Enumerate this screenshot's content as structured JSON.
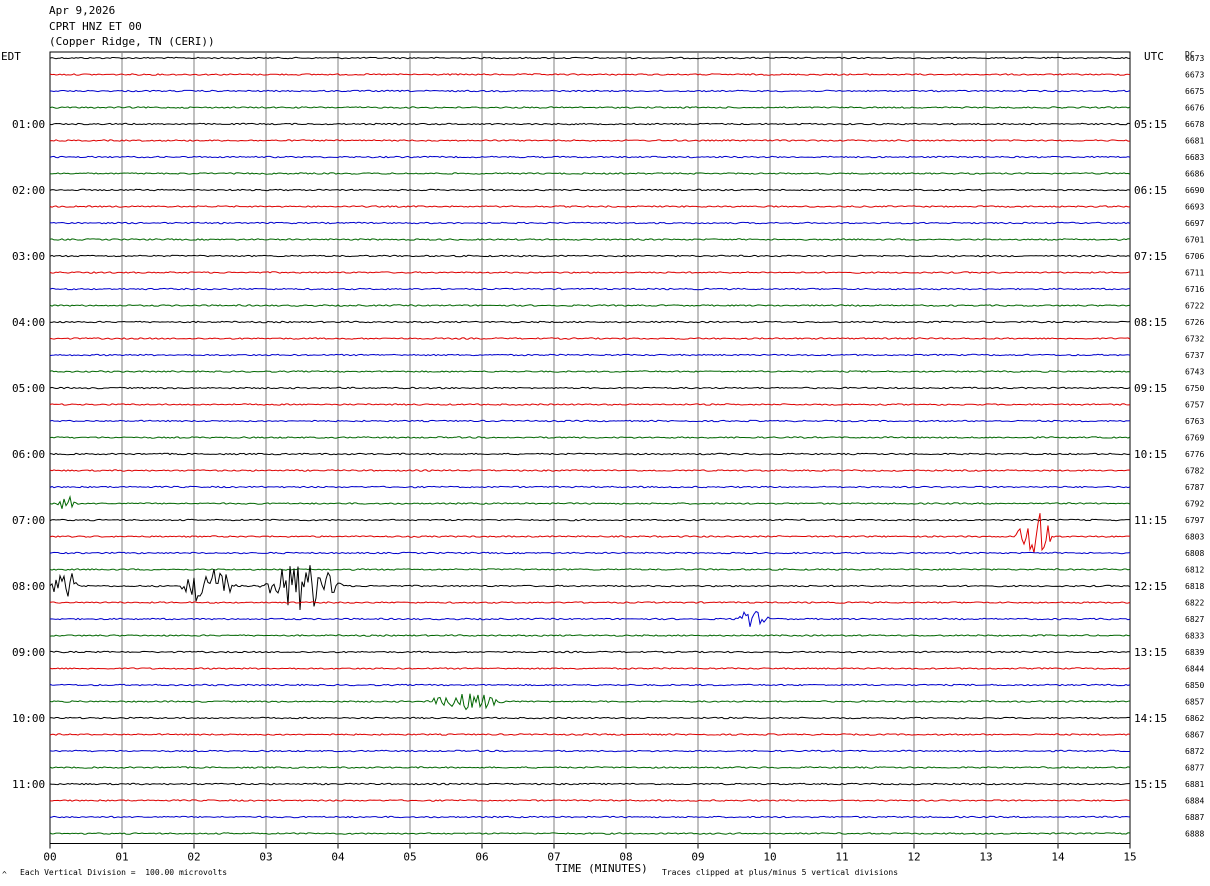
{
  "header": {
    "date": "Apr 9,2026",
    "station": "CPRT HNZ ET 00",
    "location": "(Copper Ridge, TN (CERI))"
  },
  "left_timezone": "EDT",
  "right_timezone": "UTC",
  "dc_label": "DC",
  "footer": {
    "scale_note": "Each Vertical Division =  100.00 microvolts",
    "clip_note": "Traces clipped at plus/minus 5 vertical divisions",
    "corner_mark": "^"
  },
  "colors": {
    "trace_cycle": [
      "#000000",
      "#dd0000",
      "#0000cc",
      "#006600"
    ],
    "grid": "#808080"
  },
  "chart_data": {
    "type": "line",
    "title": "",
    "xlabel": "TIME (MINUTES)",
    "ylabel": "",
    "xlim": [
      0,
      15
    ],
    "x_ticks": [
      "00",
      "01",
      "02",
      "03",
      "04",
      "05",
      "06",
      "07",
      "08",
      "09",
      "10",
      "11",
      "12",
      "13",
      "14",
      "15"
    ],
    "trace_count": 48,
    "trace_interval_minutes": 15,
    "left_hour_labels": [
      "01:00",
      "02:00",
      "03:00",
      "04:00",
      "05:00",
      "06:00",
      "07:00",
      "08:00",
      "09:00",
      "10:00",
      "11:00"
    ],
    "right_hour_labels": [
      "05:15",
      "06:15",
      "07:15",
      "08:15",
      "09:15",
      "10:15",
      "11:15",
      "12:15",
      "13:15",
      "14:15",
      "15:15"
    ],
    "dc_offsets": [
      6673,
      6673,
      6675,
      6676,
      6678,
      6681,
      6683,
      6686,
      6690,
      6693,
      6697,
      6701,
      6706,
      6711,
      6716,
      6722,
      6726,
      6732,
      6737,
      6743,
      6750,
      6757,
      6763,
      6769,
      6776,
      6782,
      6787,
      6792,
      6797,
      6803,
      6808,
      6812,
      6818,
      6822,
      6827,
      6833,
      6839,
      6844,
      6850,
      6857,
      6862,
      6867,
      6872,
      6877,
      6881,
      6884,
      6887,
      6888
    ],
    "events": [
      {
        "trace": 27,
        "start_min": 0.1,
        "end_min": 0.35,
        "peak_div": 1.0
      },
      {
        "trace": 29,
        "start_min": 13.4,
        "end_min": 13.95,
        "peak_div": 2.4
      },
      {
        "trace": 32,
        "start_min": 0.0,
        "end_min": 0.4,
        "peak_div": 1.6
      },
      {
        "trace": 32,
        "start_min": 1.8,
        "end_min": 2.6,
        "peak_div": 1.7
      },
      {
        "trace": 32,
        "start_min": 2.9,
        "end_min": 4.1,
        "peak_div": 2.0
      },
      {
        "trace": 34,
        "start_min": 9.5,
        "end_min": 10.0,
        "peak_div": 0.7
      },
      {
        "trace": 39,
        "start_min": 5.2,
        "end_min": 6.4,
        "peak_div": 0.7
      }
    ]
  }
}
